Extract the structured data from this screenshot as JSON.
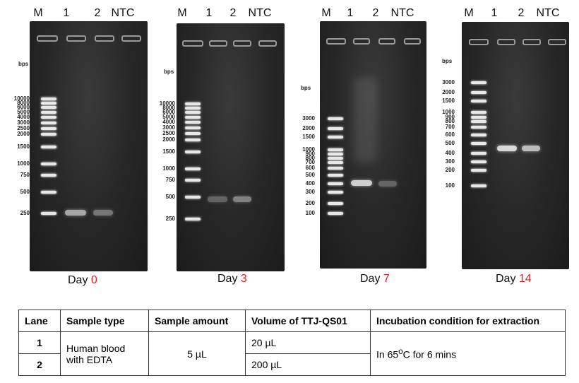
{
  "lane_headers": [
    "M",
    "1",
    "2",
    "NTC"
  ],
  "bps_label": "bps",
  "panels": [
    {
      "day_prefix": "Day ",
      "day_num": "0",
      "ladder": [
        "10000",
        "8000",
        "6000",
        "5000",
        "4000",
        "3000",
        "2500",
        "2000",
        "1500",
        "1000",
        "750",
        "500",
        "250"
      ]
    },
    {
      "day_prefix": "Day ",
      "day_num": "3",
      "ladder": [
        "10000",
        "8000",
        "6000",
        "5000",
        "4000",
        "3000",
        "2500",
        "2000",
        "1500",
        "1000",
        "750",
        "500",
        "250"
      ]
    },
    {
      "day_prefix": "Day ",
      "day_num": "7",
      "ladder": [
        "3000",
        "2000",
        "1500",
        "1000",
        "900",
        "800",
        "700",
        "600",
        "500",
        "400",
        "300",
        "200",
        "100"
      ]
    },
    {
      "day_prefix": "Day ",
      "day_num": "14",
      "ladder": [
        "3000",
        "2000",
        "1500",
        "1000",
        "900",
        "800",
        "700",
        "600",
        "500",
        "400",
        "300",
        "200",
        "100"
      ]
    }
  ],
  "table": {
    "headers": [
      "Lane",
      "Sample type",
      "Sample amount",
      "Volume of TTJ-QS01",
      "Incubation condition for extraction"
    ],
    "rows": [
      {
        "lane": "1",
        "volume": "20 µL"
      },
      {
        "lane": "2",
        "volume": "200 µL"
      }
    ],
    "sample_type": "Human blood with EDTA",
    "sample_amount": "5 µL",
    "incubation_prefix": "In 65",
    "incubation_deg": "o",
    "incubation_suffix": "C for 6 mins"
  },
  "colors": {
    "day_number": "#e02020",
    "gel_background": "#262626",
    "band": "#e8e8e8"
  }
}
